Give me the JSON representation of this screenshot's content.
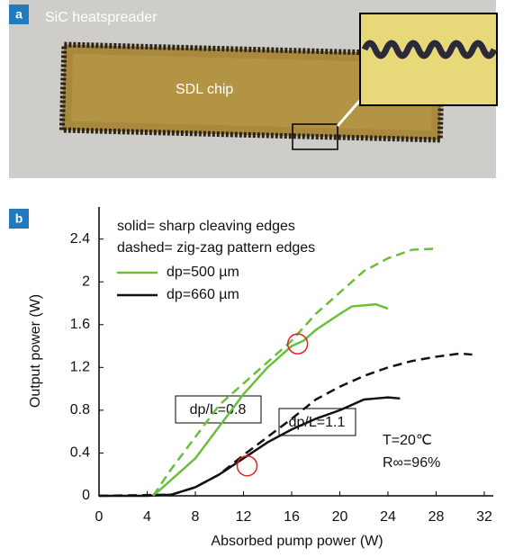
{
  "panel_a": {
    "label": "a",
    "heatspreader_label": "SiC heatspreader",
    "chip_label": "SDL chip"
  },
  "chart_data": {
    "type": "line",
    "panel_label": "b",
    "x_label": "Absorbed pump power (W)",
    "y_label": "Output power (W)",
    "xlim": [
      0,
      32.75
    ],
    "xticks": [
      0,
      4,
      8,
      12,
      16,
      20,
      24,
      28,
      32
    ],
    "ylim": [
      0,
      2.7
    ],
    "yticks": [
      0,
      0.4,
      0.8,
      1.2,
      1.6,
      2.0,
      2.4
    ],
    "notes": [
      "solid= sharp cleaving edges",
      "dashed= zig-zag pattern edges"
    ],
    "annotations": [
      "dp/L=0.8",
      "dp/L=1.1",
      "T=20℃",
      "R∞=96%"
    ],
    "highlights": [
      {
        "x": 16.5,
        "y": 1.42
      },
      {
        "x": 12.3,
        "y": 0.28
      }
    ],
    "series": [
      {
        "name": "dp=500 µm",
        "color": "#6abf3a",
        "dashed": false,
        "x": [
          4.5,
          6,
          8,
          10,
          12,
          14,
          16,
          17,
          18,
          20,
          21,
          23,
          24
        ],
        "values": [
          0,
          0.15,
          0.35,
          0.65,
          0.95,
          1.2,
          1.4,
          1.45,
          1.55,
          1.7,
          1.77,
          1.79,
          1.75
        ]
      },
      {
        "name": "dp=660 µm",
        "color": "#111111",
        "dashed": false,
        "x": [
          0,
          4,
          6,
          8,
          10,
          12,
          14,
          16,
          18,
          20,
          22,
          23,
          24,
          25
        ],
        "values": [
          0,
          0,
          0.01,
          0.08,
          0.2,
          0.35,
          0.5,
          0.62,
          0.72,
          0.8,
          0.9,
          0.91,
          0.92,
          0.91
        ]
      },
      {
        "color": "#6abf3a",
        "dashed": true,
        "x": [
          4.5,
          6,
          8,
          10,
          12,
          14,
          16,
          18,
          20,
          22,
          24,
          26,
          28
        ],
        "values": [
          0,
          0.25,
          0.55,
          0.85,
          1.05,
          1.25,
          1.45,
          1.7,
          1.9,
          2.1,
          2.22,
          2.3,
          2.31
        ]
      },
      {
        "color": "#111111",
        "dashed": true,
        "x": [
          0,
          6,
          8,
          10,
          12,
          14,
          16,
          18,
          20,
          22,
          24,
          26,
          28,
          30,
          31
        ],
        "values": [
          0,
          0.01,
          0.08,
          0.2,
          0.38,
          0.55,
          0.72,
          0.9,
          1.02,
          1.12,
          1.2,
          1.26,
          1.3,
          1.33,
          1.32
        ]
      }
    ]
  }
}
